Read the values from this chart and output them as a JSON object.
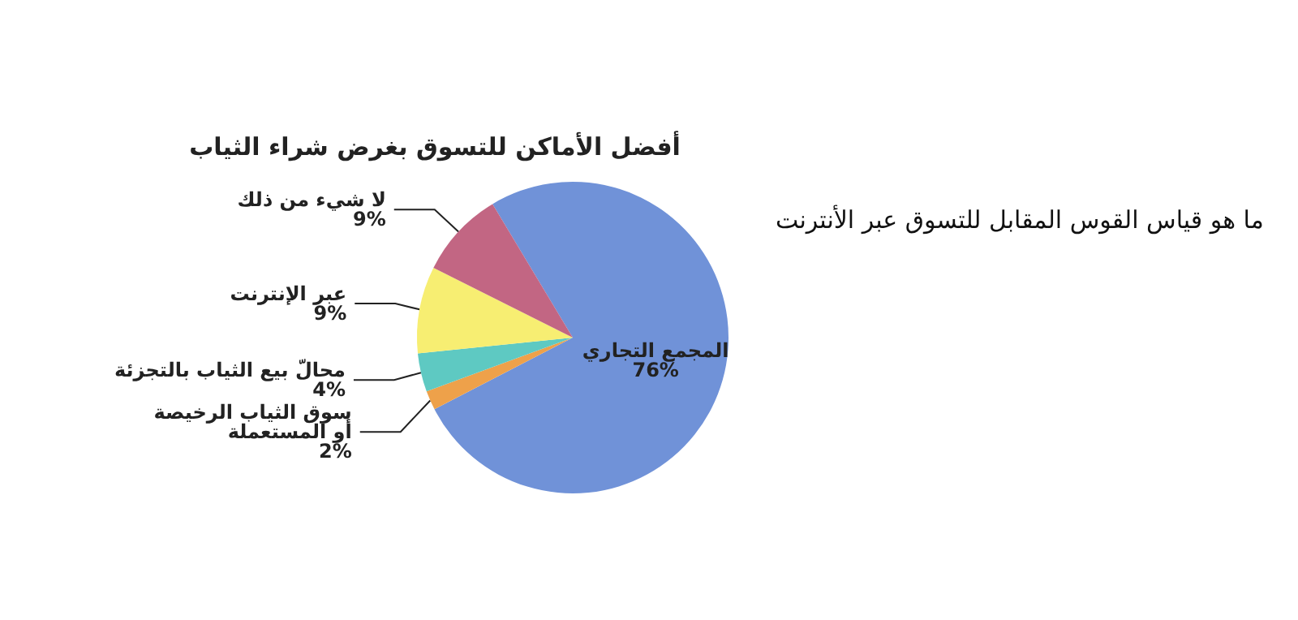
{
  "chart_data": {
    "type": "pie",
    "title": "أفضل الأماكن للتسوق بغرض شراء الثياب",
    "categories": [
      "المجمع التجاري",
      "سوق الثياب الرخيصة\nأو المستعملة",
      "محالّ بيع الثياب بالتجزئة",
      "عبر الإنترنت",
      "لا شيء من ذلك"
    ],
    "values": [
      76,
      2,
      4,
      9,
      9
    ],
    "value_labels": [
      "76%",
      "2%",
      "4%",
      "9%",
      "9%"
    ],
    "colors": [
      "#7092d8",
      "#eea14a",
      "#5ec9c2",
      "#f7ee72",
      "#c26683"
    ],
    "legend": false,
    "annotations": [
      "ما هو قياس القوس المقابل للتسوق عبر الأنترنت"
    ]
  }
}
